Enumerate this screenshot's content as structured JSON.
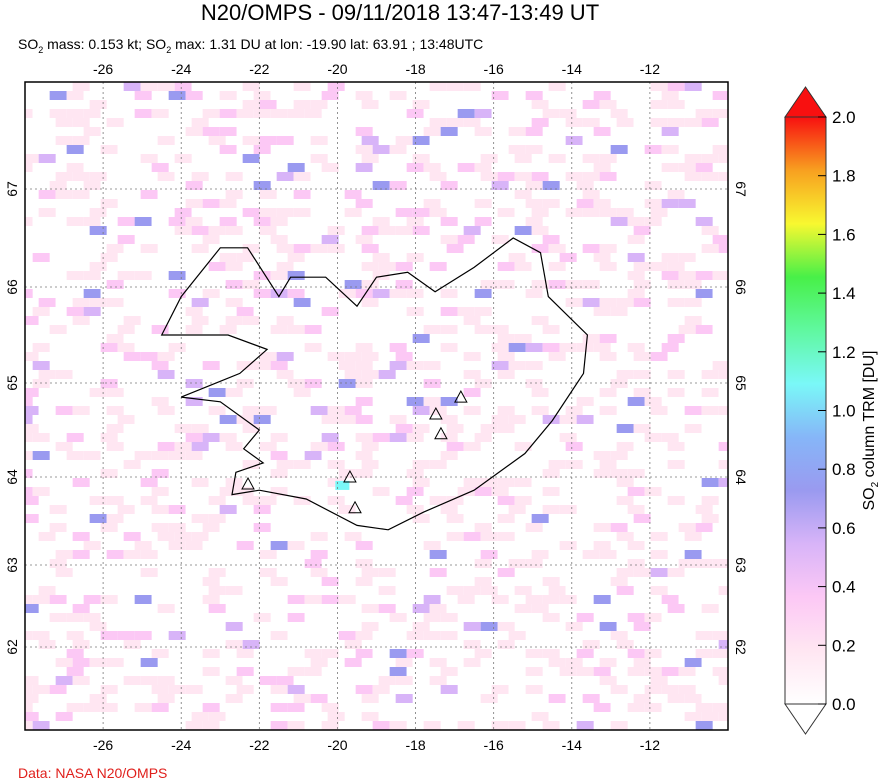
{
  "title": "N20/OMPS - 09/11/2018 13:47-13:49 UT",
  "subtitle": {
    "p1": "SO",
    "p2": " mass: 0.153 kt; SO",
    "p3": " max: 1.31 DU at lon: -19.90 lat: 63.91 ; 13:48UTC",
    "sub": "2"
  },
  "credit": "Data: NASA N20/OMPS",
  "map": {
    "lon_ticks": [
      "-26",
      "-24",
      "-22",
      "-20",
      "-18",
      "-16",
      "-14",
      "-12"
    ],
    "lon_values": [
      -26,
      -24,
      -22,
      -20,
      -18,
      -16,
      -14,
      -12
    ],
    "lat_ticks": [
      "67",
      "66",
      "65",
      "64",
      "63",
      "62"
    ],
    "lat_values": [
      67,
      66,
      65,
      64,
      63,
      62
    ],
    "lon_range": [
      -28,
      -10
    ],
    "lat_range": [
      61,
      68.1
    ],
    "volcanoes": [
      [
        -22.29,
        63.92
      ],
      [
        -19.68,
        64.0
      ],
      [
        -17.48,
        64.67
      ],
      [
        -17.35,
        64.46
      ],
      [
        -16.84,
        64.85
      ],
      [
        -19.55,
        63.65
      ]
    ],
    "max_point": {
      "lon": -19.9,
      "lat": 63.91,
      "value": 1.31
    }
  },
  "colorbar": {
    "label": "SO",
    "label_sub": "2",
    "label_rest": " column TRM [DU]",
    "ticks": [
      "0.0",
      "0.2",
      "0.4",
      "0.6",
      "0.8",
      "1.0",
      "1.2",
      "1.4",
      "1.6",
      "1.8",
      "2.0"
    ],
    "range": [
      0,
      2
    ],
    "colors": [
      "#ffffff",
      "#ffe6f2",
      "#fcc8f5",
      "#d8b4f8",
      "#9a9af0",
      "#86b6f8",
      "#7af8f8",
      "#60f8a0",
      "#48f048",
      "#f8f830",
      "#f8a020",
      "#f81010"
    ]
  }
}
